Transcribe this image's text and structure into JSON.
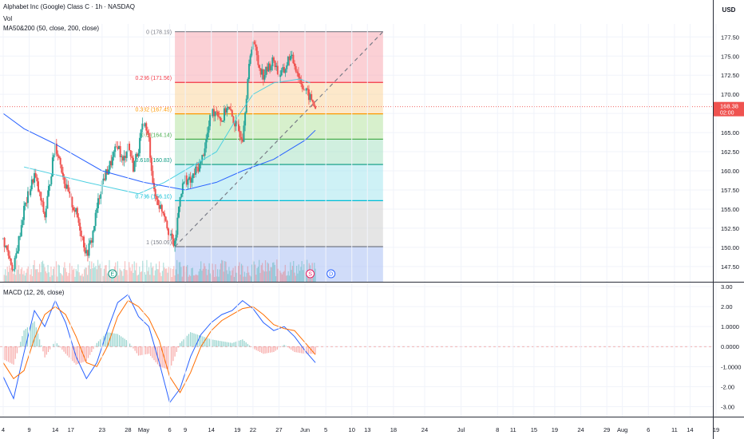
{
  "header": {
    "symbol_line": "Alphabet Inc (Google) Class C · 1h · NASDAQ",
    "vol_label": "Vol",
    "ma_label": "MA50&200 (50, close, 200, close)",
    "macd_label": "MACD (12, 26, close)",
    "currency": "USD"
  },
  "price_tag": {
    "value": "168.38",
    "countdown": "02:00",
    "color": "#ef5350"
  },
  "colors": {
    "bull": "#26a69a",
    "bear": "#ef5350",
    "ma_fast": "#4dd0e1",
    "ma_slow": "#2962ff",
    "macd_line": "#2962ff",
    "signal_line": "#ff6d00",
    "axis_text": "#131722"
  },
  "chart_data": [
    {
      "type": "candlestick",
      "title": "Alphabet Inc (Google) Class C · 1h · NASDAQ",
      "y_ticks": [
        "177.50",
        "175.00",
        "172.50",
        "170.00",
        "167.50",
        "165.00",
        "162.50",
        "160.00",
        "157.50",
        "155.00",
        "152.50",
        "150.00",
        "147.50"
      ],
      "ylim": [
        145.5,
        179.2
      ],
      "x_ticks": [
        "4",
        "9",
        "14",
        "17",
        "23",
        "28",
        "May",
        "6",
        "9",
        "14",
        "19",
        "22",
        "27",
        "Jun",
        "5",
        "10",
        "13",
        "18",
        "24",
        "Jul",
        "8",
        "11",
        "15",
        "19",
        "24",
        "29",
        "Aug",
        "6",
        "11",
        "14",
        "19"
      ],
      "x_ticks_dates": [
        "2024-04-04",
        "2024-04-09",
        "2024-04-14",
        "2024-04-17",
        "2024-04-23",
        "2024-04-28",
        "2024-05-01",
        "2024-05-06",
        "2024-05-09",
        "2024-05-14",
        "2024-05-19",
        "2024-05-22",
        "2024-05-27",
        "2024-06-01",
        "2024-06-05",
        "2024-06-10",
        "2024-06-13",
        "2024-06-18",
        "2024-06-24",
        "2024-07-01",
        "2024-07-08",
        "2024-07-11",
        "2024-07-15",
        "2024-07-19",
        "2024-07-24",
        "2024-07-29",
        "2024-08-01",
        "2024-08-06",
        "2024-08-11",
        "2024-08-14",
        "2024-08-19"
      ],
      "price_path": [
        [
          "2024-04-04",
          151.0
        ],
        [
          "2024-04-06",
          147.0
        ],
        [
          "2024-04-08",
          155.0
        ],
        [
          "2024-04-10",
          159.5
        ],
        [
          "2024-04-12",
          154.0
        ],
        [
          "2024-04-14",
          163.5
        ],
        [
          "2024-04-15",
          161.0
        ],
        [
          "2024-04-16",
          158.0
        ],
        [
          "2024-04-17",
          156.0
        ],
        [
          "2024-04-18",
          154.5
        ],
        [
          "2024-04-19",
          152.0
        ],
        [
          "2024-04-20",
          149.0
        ],
        [
          "2024-04-21",
          151.0
        ],
        [
          "2024-04-22",
          155.0
        ],
        [
          "2024-04-23",
          158.5
        ],
        [
          "2024-04-24",
          160.0
        ],
        [
          "2024-04-25",
          161.5
        ],
        [
          "2024-04-26",
          163.5
        ],
        [
          "2024-04-27",
          161.0
        ],
        [
          "2024-04-28",
          163.5
        ],
        [
          "2024-04-29",
          160.5
        ],
        [
          "2024-04-30",
          163.0
        ],
        [
          "2024-05-01",
          166.5
        ],
        [
          "2024-05-02",
          164.0
        ],
        [
          "2024-05-03",
          157.0
        ],
        [
          "2024-05-04",
          155.5
        ],
        [
          "2024-05-05",
          154.5
        ],
        [
          "2024-05-06",
          151.5
        ],
        [
          "2024-05-07",
          150.2
        ],
        [
          "2024-05-08",
          157.0
        ],
        [
          "2024-05-09",
          159.0
        ],
        [
          "2024-05-10",
          158.5
        ],
        [
          "2024-05-11",
          160.0
        ],
        [
          "2024-05-12",
          161.0
        ],
        [
          "2024-05-13",
          164.0
        ],
        [
          "2024-05-14",
          167.5
        ],
        [
          "2024-05-15",
          168.0
        ],
        [
          "2024-05-16",
          166.5
        ],
        [
          "2024-05-17",
          168.5
        ],
        [
          "2024-05-18",
          167.0
        ],
        [
          "2024-05-19",
          165.5
        ],
        [
          "2024-05-20",
          164.5
        ],
        [
          "2024-05-21",
          172.0
        ],
        [
          "2024-05-22",
          177.5
        ],
        [
          "2024-05-23",
          174.0
        ],
        [
          "2024-05-24",
          172.5
        ],
        [
          "2024-05-25",
          173.5
        ],
        [
          "2024-05-26",
          174.5
        ],
        [
          "2024-05-27",
          172.5
        ],
        [
          "2024-05-28",
          173.0
        ],
        [
          "2024-05-29",
          175.0
        ],
        [
          "2024-05-30",
          174.0
        ],
        [
          "2024-05-31",
          172.0
        ],
        [
          "2024-06-01",
          170.5
        ],
        [
          "2024-06-02",
          169.5
        ],
        [
          "2024-06-03",
          168.38
        ]
      ],
      "fib_retracement": {
        "levels": [
          {
            "label": "0 (178.19)",
            "ratio": 0,
            "price": 178.19,
            "color": "#787b86",
            "fill": "#f7a9b3"
          },
          {
            "label": "0.236 (171.56)",
            "ratio": 0.236,
            "price": 171.56,
            "color": "#f23645",
            "fill": "#fbd59e"
          },
          {
            "label": "0.382 (167.45)",
            "ratio": 0.382,
            "price": 167.45,
            "color": "#ff9800",
            "fill": "#b7e3a2"
          },
          {
            "label": "0.5 (164.14)",
            "ratio": 0.5,
            "price": 164.14,
            "color": "#4caf50",
            "fill": "#a9e2c4"
          },
          {
            "label": "0.618 (160.83)",
            "ratio": 0.618,
            "price": 160.83,
            "color": "#089981",
            "fill": "#a6e6ef"
          },
          {
            "label": "0.786 (156.10)",
            "ratio": 0.786,
            "price": 156.1,
            "color": "#00bcd4",
            "fill": "#cfcfcf"
          },
          {
            "label": "1 (150.09)",
            "ratio": 1,
            "price": 150.09,
            "color": "#787b86",
            "fill": "#aac0f4"
          }
        ],
        "trend_start": [
          "2024-05-07",
          150.09
        ],
        "trend_end": [
          "2024-06-16",
          178.19
        ]
      },
      "ma50": [
        [
          "2024-04-08",
          160.5
        ],
        [
          "2024-04-20",
          158.5
        ],
        [
          "2024-04-30",
          157.0
        ],
        [
          "2024-05-05",
          158.5
        ],
        [
          "2024-05-10",
          160.5
        ],
        [
          "2024-05-15",
          162.5
        ],
        [
          "2024-05-19",
          167.0
        ],
        [
          "2024-05-22",
          170.0
        ],
        [
          "2024-05-26",
          171.5
        ],
        [
          "2024-05-31",
          172.0
        ],
        [
          "2024-06-02",
          171.5
        ]
      ],
      "ma200": [
        [
          "2024-04-04",
          167.5
        ],
        [
          "2024-04-08",
          165.5
        ],
        [
          "2024-04-14",
          163.5
        ],
        [
          "2024-04-23",
          160.0
        ],
        [
          "2024-05-01",
          158.5
        ],
        [
          "2024-05-09",
          157.5
        ],
        [
          "2024-05-15",
          158.5
        ],
        [
          "2024-05-20",
          160.0
        ],
        [
          "2024-05-26",
          161.5
        ],
        [
          "2024-06-01",
          164.0
        ],
        [
          "2024-06-03",
          165.3
        ]
      ],
      "event_markers": [
        {
          "date": "2024-04-25",
          "label": "E"
        },
        {
          "date": "2024-06-02",
          "label": "S"
        },
        {
          "date": "2024-06-06",
          "label": "D"
        }
      ]
    },
    {
      "type": "line",
      "title": "MACD (12, 26, close)",
      "y_ticks": [
        "3.00",
        "2.00",
        "1.0000",
        "0.0000",
        "-1.0000",
        "-2.00",
        "-3.00"
      ],
      "ylim": [
        -3.5,
        3.2
      ],
      "macd": [
        [
          "2024-04-04",
          -1.5
        ],
        [
          "2024-04-06",
          -2.6
        ],
        [
          "2024-04-08",
          -0.3
        ],
        [
          "2024-04-10",
          1.8
        ],
        [
          "2024-04-12",
          1.0
        ],
        [
          "2024-04-14",
          2.3
        ],
        [
          "2024-04-16",
          1.2
        ],
        [
          "2024-04-18",
          -0.5
        ],
        [
          "2024-04-20",
          -1.6
        ],
        [
          "2024-04-22",
          -0.8
        ],
        [
          "2024-04-24",
          0.8
        ],
        [
          "2024-04-26",
          2.2
        ],
        [
          "2024-04-28",
          2.6
        ],
        [
          "2024-04-30",
          1.5
        ],
        [
          "2024-05-02",
          1.0
        ],
        [
          "2024-05-04",
          -0.8
        ],
        [
          "2024-05-06",
          -2.8
        ],
        [
          "2024-05-08",
          -2.1
        ],
        [
          "2024-05-10",
          -0.5
        ],
        [
          "2024-05-12",
          0.6
        ],
        [
          "2024-05-14",
          1.2
        ],
        [
          "2024-05-16",
          1.6
        ],
        [
          "2024-05-18",
          1.8
        ],
        [
          "2024-05-20",
          2.3
        ],
        [
          "2024-05-22",
          1.9
        ],
        [
          "2024-05-24",
          1.2
        ],
        [
          "2024-05-26",
          0.8
        ],
        [
          "2024-05-28",
          1.0
        ],
        [
          "2024-05-30",
          0.5
        ],
        [
          "2024-06-01",
          -0.2
        ],
        [
          "2024-06-03",
          -0.8
        ]
      ],
      "signal": [
        [
          "2024-04-04",
          -0.8
        ],
        [
          "2024-04-06",
          -1.6
        ],
        [
          "2024-04-08",
          -1.2
        ],
        [
          "2024-04-10",
          0.4
        ],
        [
          "2024-04-12",
          1.6
        ],
        [
          "2024-04-14",
          2.0
        ],
        [
          "2024-04-16",
          1.6
        ],
        [
          "2024-04-18",
          0.5
        ],
        [
          "2024-04-20",
          -0.8
        ],
        [
          "2024-04-22",
          -1.0
        ],
        [
          "2024-04-24",
          0.0
        ],
        [
          "2024-04-26",
          1.5
        ],
        [
          "2024-04-28",
          2.3
        ],
        [
          "2024-04-30",
          2.0
        ],
        [
          "2024-05-02",
          1.4
        ],
        [
          "2024-05-04",
          0.3
        ],
        [
          "2024-05-06",
          -1.5
        ],
        [
          "2024-05-08",
          -2.3
        ],
        [
          "2024-05-10",
          -1.3
        ],
        [
          "2024-05-12",
          0.0
        ],
        [
          "2024-05-14",
          0.8
        ],
        [
          "2024-05-16",
          1.3
        ],
        [
          "2024-05-18",
          1.6
        ],
        [
          "2024-05-20",
          1.9
        ],
        [
          "2024-05-22",
          2.0
        ],
        [
          "2024-05-24",
          1.6
        ],
        [
          "2024-05-26",
          1.1
        ],
        [
          "2024-05-28",
          0.9
        ],
        [
          "2024-05-30",
          0.8
        ],
        [
          "2024-06-01",
          0.2
        ],
        [
          "2024-06-03",
          -0.4
        ]
      ]
    }
  ]
}
